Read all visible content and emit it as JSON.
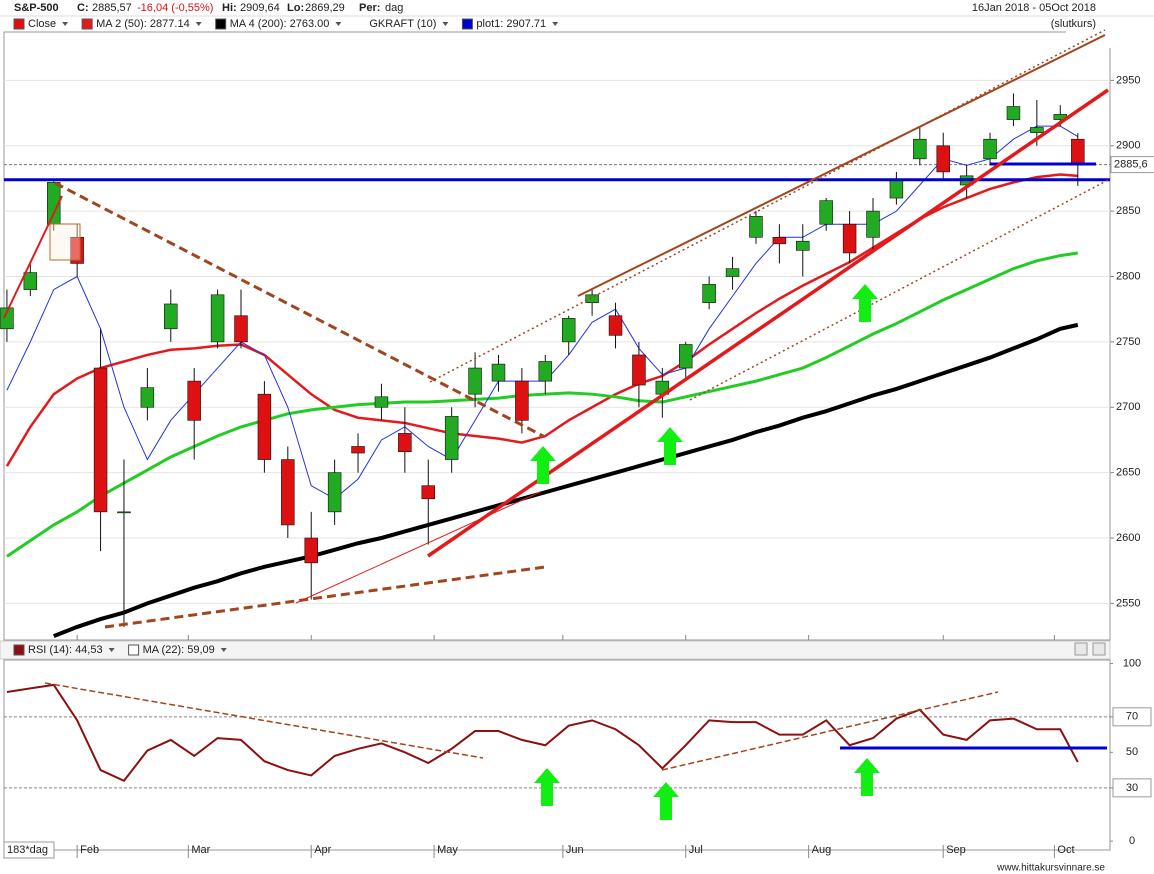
{
  "header": {
    "symbol": "S&P-500",
    "close_label": "C:",
    "close": "2885,57",
    "change": "-16,04 (-0,55%)",
    "high_label": "Hi:",
    "high": "2909,64",
    "low_label": "Lo:",
    "low": "2869,29",
    "period_label": "Per:",
    "period": "dag",
    "range": "16Jan 2018 - 05Oct 2018",
    "price_type": "(slutkurs)"
  },
  "footer": {
    "days": "183*dag",
    "site": "www.hittakursvinnare.se"
  },
  "chart_data": [
    {
      "type": "candlestick",
      "name": "Close",
      "color": "#dd1111",
      "color_up": "#22aa22",
      "color_down": "#dd1111",
      "x": [
        0,
        4,
        8,
        12,
        16,
        20,
        24,
        28,
        32,
        36,
        40,
        44,
        48,
        52,
        56,
        60,
        64,
        68,
        72,
        76,
        80,
        84,
        88,
        92,
        96,
        100,
        104,
        108,
        112,
        116,
        120,
        124,
        128,
        132,
        136,
        140,
        144,
        148,
        152,
        156,
        160,
        164,
        168,
        172,
        176,
        180,
        183
      ],
      "open": [
        2760,
        2790,
        2840,
        2830,
        2730,
        2620,
        2700,
        2760,
        2720,
        2750,
        2770,
        2710,
        2660,
        2600,
        2620,
        2670,
        2700,
        2680,
        2640,
        2660,
        2710,
        2720,
        2720,
        2720,
        2750,
        2780,
        2770,
        2740,
        2710,
        2730,
        2780,
        2800,
        2830,
        2830,
        2820,
        2840,
        2840,
        2830,
        2860,
        2890,
        2900,
        2870,
        2890,
        2920,
        2910,
        2920,
        2905
      ],
      "high": [
        2790,
        2810,
        2873,
        2840,
        2760,
        2660,
        2730,
        2790,
        2730,
        2790,
        2790,
        2720,
        2670,
        2620,
        2660,
        2680,
        2718,
        2700,
        2660,
        2700,
        2742,
        2740,
        2730,
        2740,
        2770,
        2790,
        2780,
        2750,
        2730,
        2750,
        2800,
        2815,
        2850,
        2840,
        2840,
        2860,
        2850,
        2860,
        2880,
        2915,
        2910,
        2885,
        2910,
        2940,
        2935,
        2931,
        2909.64
      ],
      "low": [
        2750,
        2785,
        2835,
        2800,
        2590,
        2532,
        2690,
        2750,
        2660,
        2745,
        2745,
        2650,
        2600,
        2553,
        2610,
        2650,
        2690,
        2650,
        2595,
        2650,
        2700,
        2712,
        2680,
        2710,
        2740,
        2770,
        2745,
        2700,
        2692,
        2720,
        2775,
        2790,
        2825,
        2810,
        2800,
        2835,
        2810,
        2820,
        2855,
        2885,
        2875,
        2860,
        2885,
        2915,
        2900,
        2915,
        2869.29
      ],
      "close": [
        2776,
        2803,
        2872,
        2810,
        2620,
        2620,
        2715,
        2779,
        2690,
        2786,
        2750,
        2660,
        2610,
        2581,
        2650,
        2665,
        2708,
        2666,
        2630,
        2693,
        2730,
        2733,
        2690,
        2735,
        2768,
        2786,
        2755,
        2717,
        2720,
        2748,
        2794,
        2806,
        2846,
        2825,
        2827,
        2858,
        2818,
        2850,
        2874,
        2905,
        2880,
        2877,
        2905,
        2930,
        2914,
        2924,
        2885.57
      ],
      "series": [
        {
          "name": "MA 2 (50): 2877.14",
          "color": "#e31a1c",
          "width": 2.5,
          "values": [
            2655,
            2685,
            2710,
            2722,
            2730,
            2735,
            2740,
            2744,
            2745,
            2747,
            2748,
            2740,
            2725,
            2710,
            2698,
            2692,
            2690,
            2688,
            2684,
            2680,
            2678,
            2676,
            2673,
            2678,
            2690,
            2700,
            2710,
            2718,
            2724,
            2735,
            2748,
            2760,
            2772,
            2783,
            2793,
            2802,
            2811,
            2822,
            2833,
            2844,
            2853,
            2860,
            2867,
            2872,
            2876,
            2878,
            2877
          ]
        },
        {
          "name": "MA 4 (200): 2763.00",
          "color": "#000000",
          "width": 4,
          "values": [
            null,
            null,
            2525,
            2532,
            2538,
            2543,
            2550,
            2556,
            2562,
            2567,
            2573,
            2578,
            2582,
            2586,
            2591,
            2596,
            2600,
            2605,
            2610,
            2615,
            2620,
            2625,
            2630,
            2635,
            2640,
            2645,
            2650,
            2655,
            2660,
            2665,
            2670,
            2675,
            2681,
            2686,
            2692,
            2697,
            2703,
            2709,
            2714,
            2720,
            2726,
            2732,
            2738,
            2745,
            2752,
            2760,
            2763
          ]
        },
        {
          "color": "#22cc22",
          "width": 3,
          "values": [
            2586,
            2598,
            2610,
            2620,
            2632,
            2642,
            2652,
            2662,
            2670,
            2678,
            2685,
            2690,
            2695,
            2698,
            2700,
            2702,
            2703,
            2704,
            2704,
            2705,
            2706,
            2707,
            2709,
            2710,
            2711,
            2710,
            2708,
            2705,
            2704,
            2708,
            2712,
            2716,
            2720,
            2725,
            2730,
            2738,
            2747,
            2756,
            2764,
            2773,
            2782,
            2790,
            2798,
            2806,
            2812,
            2816,
            2818
          ]
        },
        {
          "color": "#2233dd",
          "width": 1,
          "values": [
            2713,
            2750,
            2790,
            2800,
            2760,
            2700,
            2660,
            2690,
            2710,
            2730,
            2750,
            2740,
            2700,
            2640,
            2630,
            2645,
            2675,
            2685,
            2670,
            2660,
            2690,
            2720,
            2720,
            2720,
            2740,
            2765,
            2775,
            2745,
            2725,
            2730,
            2760,
            2785,
            2810,
            2830,
            2830,
            2840,
            2840,
            2840,
            2850,
            2870,
            2890,
            2885,
            2890,
            2905,
            2915,
            2915,
            2907
          ]
        }
      ],
      "legend_extra": [
        {
          "name": "GKRAFT (10)"
        },
        {
          "name": "plot1: 2907.71",
          "color": "#0000cc"
        }
      ],
      "hlines": [
        {
          "value": 2874,
          "color": "#0000cc",
          "width": 3
        },
        {
          "value": 2886,
          "color": "#0000cc",
          "width": 3,
          "from": 168
        }
      ],
      "price_marker": {
        "value": 2885.6,
        "label": "2885,6"
      },
      "xlim": [
        -0.5,
        188.5
      ],
      "ylim": [
        2522,
        2987
      ],
      "yticks": [
        2550,
        2600,
        2650,
        2700,
        2750,
        2800,
        2850,
        2900,
        2950
      ],
      "grid": true
    },
    {
      "type": "line",
      "x": [
        0,
        4,
        8,
        12,
        16,
        20,
        24,
        28,
        32,
        36,
        40,
        44,
        48,
        52,
        56,
        60,
        64,
        68,
        72,
        76,
        80,
        84,
        88,
        92,
        96,
        100,
        104,
        108,
        112,
        116,
        120,
        124,
        128,
        132,
        136,
        140,
        144,
        148,
        152,
        156,
        160,
        164,
        168,
        172,
        176,
        180,
        183
      ],
      "series": [
        {
          "name": "RSI (14): 44,53",
          "color": "#8b1010",
          "values": [
            84,
            86,
            88,
            68,
            40,
            34,
            51,
            57,
            48,
            58,
            57,
            45,
            40,
            37,
            48,
            52,
            55,
            50,
            44,
            52,
            62,
            62,
            57,
            54,
            65,
            68,
            63,
            54,
            41,
            54,
            68,
            67,
            67,
            60,
            60,
            68,
            54,
            58,
            69,
            74,
            60,
            57,
            68,
            69,
            63,
            63,
            44.53
          ]
        }
      ],
      "legend_extra": [
        {
          "name": "MA (22): 59,09"
        }
      ],
      "xlim": [
        -0.5,
        188.5
      ],
      "ylim": [
        -5,
        102
      ],
      "yticks": [
        0,
        30,
        50,
        70,
        100
      ],
      "reference_lines": [
        30,
        70
      ],
      "xticks": [
        {
          "value": 12,
          "label": "Feb"
        },
        {
          "value": 31,
          "label": "Mar"
        },
        {
          "value": 52,
          "label": "Apr"
        },
        {
          "value": 73,
          "label": "May"
        },
        {
          "value": 95,
          "label": "Jun"
        },
        {
          "value": 116,
          "label": "Jul"
        },
        {
          "value": 137,
          "label": "Aug"
        },
        {
          "value": 160,
          "label": "Sep"
        },
        {
          "value": 179,
          "label": "Oct"
        }
      ]
    }
  ]
}
